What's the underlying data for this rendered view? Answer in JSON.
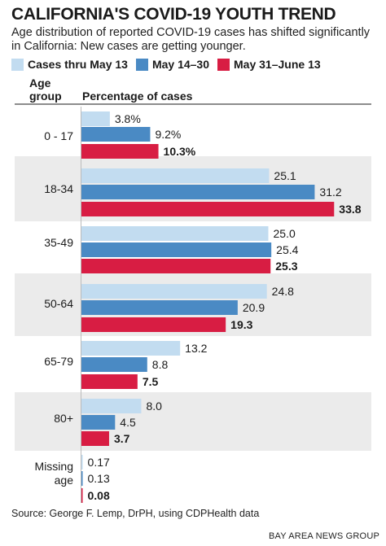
{
  "title": "CALIFORNIA'S COVID-19 YOUTH TREND",
  "subtitle": "Age distribution of reported COVID-19 cases has shifted significantly in California: New cases are getting younger.",
  "header": {
    "age_label": "Age group",
    "pct_label": "Percentage of cases"
  },
  "source": "Source: George F. Lemp, DrPH, using CDPHealth data",
  "credit": "BAY AREA NEWS GROUP",
  "colors": {
    "series1": "#c2dcf0",
    "series2": "#4a8ac4",
    "series3": "#d81d43",
    "bands": "#ebebeb"
  },
  "chart_data": {
    "type": "bar",
    "orientation": "horizontal",
    "title": "CALIFORNIA'S COVID-19 YOUTH TREND",
    "subtitle": "Age distribution of reported COVID-19 cases has shifted significantly in California: New cases are getting younger.",
    "ylabel": "Age group",
    "xlabel": "Percentage of cases",
    "xlim": [
      0,
      35
    ],
    "legend": "top",
    "categories": [
      "0 - 17",
      "18-34",
      "35-49",
      "50-64",
      "65-79",
      "80+",
      "Missing age"
    ],
    "series": [
      {
        "name": "Cases thru May 13",
        "values": [
          3.8,
          25.1,
          25.0,
          24.8,
          13.2,
          8.0,
          0.17
        ],
        "labels": [
          "3.8%",
          "25.1",
          "25.0",
          "24.8",
          "13.2",
          "8.0",
          "0.17"
        ]
      },
      {
        "name": "May 14–30",
        "values": [
          9.2,
          31.2,
          25.4,
          20.9,
          8.8,
          4.5,
          0.13
        ],
        "labels": [
          "9.2%",
          "31.2",
          "25.4",
          "20.9",
          "8.8",
          "4.5",
          "0.13"
        ]
      },
      {
        "name": "May 31–June 13",
        "values": [
          10.3,
          33.8,
          25.3,
          19.3,
          7.5,
          3.7,
          0.08
        ],
        "labels": [
          "10.3%",
          "33.8",
          "25.3",
          "19.3",
          "7.5",
          "3.7",
          "0.08"
        ]
      }
    ]
  }
}
